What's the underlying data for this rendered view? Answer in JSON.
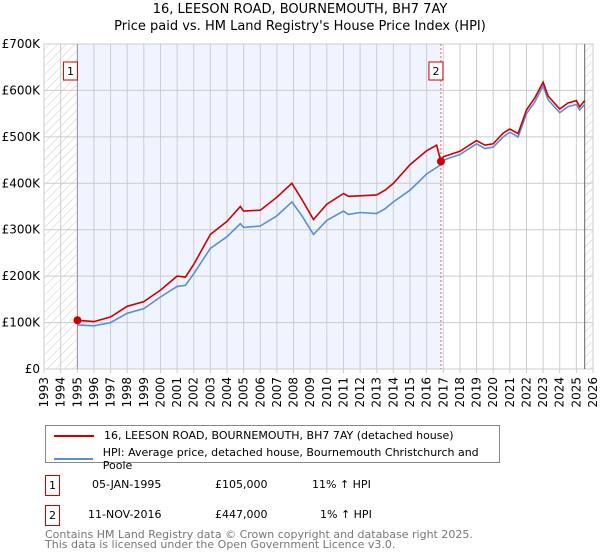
{
  "chart_data": {
    "type": "line",
    "title": "16, LEESON ROAD, BOURNEMOUTH, BH7 7AY",
    "subtitle": "Price paid vs. HM Land Registry's House Price Index (HPI)",
    "xlim": [
      1993,
      2026
    ],
    "ylim": [
      0,
      700000
    ],
    "x_ticks": [
      "1993",
      "1994",
      "1995",
      "1996",
      "1997",
      "1998",
      "1999",
      "2000",
      "2001",
      "2002",
      "2003",
      "2004",
      "2005",
      "2006",
      "2007",
      "2008",
      "2009",
      "2010",
      "2011",
      "2012",
      "2013",
      "2014",
      "2015",
      "2016",
      "2017",
      "2018",
      "2019",
      "2020",
      "2021",
      "2022",
      "2023",
      "2024",
      "2025",
      "2026"
    ],
    "y_ticks": [
      {
        "v": 0,
        "label": "£0"
      },
      {
        "v": 100000,
        "label": "£100K"
      },
      {
        "v": 200000,
        "label": "£200K"
      },
      {
        "v": 300000,
        "label": "£300K"
      },
      {
        "v": 400000,
        "label": "£400K"
      },
      {
        "v": 500000,
        "label": "£500K"
      },
      {
        "v": 600000,
        "label": "£600K"
      },
      {
        "v": 700000,
        "label": "£700K"
      }
    ],
    "grid": true,
    "series": [
      {
        "name": "16, LEESON ROAD, BOURNEMOUTH, BH7 7AY (detached house)",
        "color": "#cc0000",
        "points": [
          [
            1995.01,
            105000
          ],
          [
            1996,
            102000
          ],
          [
            1997,
            112000
          ],
          [
            1998,
            135000
          ],
          [
            1999,
            145000
          ],
          [
            2000,
            170000
          ],
          [
            2001,
            200000
          ],
          [
            2001.5,
            198000
          ],
          [
            2002,
            225000
          ],
          [
            2003,
            290000
          ],
          [
            2004,
            318000
          ],
          [
            2004.8,
            350000
          ],
          [
            2005,
            340000
          ],
          [
            2006,
            342000
          ],
          [
            2007,
            370000
          ],
          [
            2007.9,
            400000
          ],
          [
            2008.5,
            365000
          ],
          [
            2009.2,
            322000
          ],
          [
            2010,
            355000
          ],
          [
            2011,
            378000
          ],
          [
            2011.3,
            372000
          ],
          [
            2012,
            373000
          ],
          [
            2013,
            375000
          ],
          [
            2013.5,
            385000
          ],
          [
            2014,
            400000
          ],
          [
            2015,
            440000
          ],
          [
            2016,
            470000
          ],
          [
            2016.6,
            482000
          ],
          [
            2016.86,
            447000
          ],
          [
            2017,
            457000
          ],
          [
            2018,
            469000
          ],
          [
            2019,
            492000
          ],
          [
            2019.5,
            482000
          ],
          [
            2020,
            485000
          ],
          [
            2020.6,
            508000
          ],
          [
            2021,
            517000
          ],
          [
            2021.5,
            507000
          ],
          [
            2022,
            558000
          ],
          [
            2022.5,
            584000
          ],
          [
            2023,
            618000
          ],
          [
            2023.3,
            588000
          ],
          [
            2024,
            560000
          ],
          [
            2024.5,
            573000
          ],
          [
            2025,
            578000
          ],
          [
            2025.2,
            565000
          ],
          [
            2025.5,
            578000
          ]
        ]
      },
      {
        "name": "HPI: Average price, detached house, Bournemouth Christchurch and Poole",
        "color": "#5b8fd4",
        "points": [
          [
            1995.01,
            95000
          ],
          [
            1996,
            93000
          ],
          [
            1997,
            100000
          ],
          [
            1998,
            120000
          ],
          [
            1999,
            130000
          ],
          [
            2000,
            155000
          ],
          [
            2001,
            178000
          ],
          [
            2001.5,
            180000
          ],
          [
            2002,
            205000
          ],
          [
            2003,
            260000
          ],
          [
            2004,
            285000
          ],
          [
            2004.8,
            313000
          ],
          [
            2005,
            305000
          ],
          [
            2006,
            308000
          ],
          [
            2007,
            330000
          ],
          [
            2007.9,
            360000
          ],
          [
            2008.5,
            330000
          ],
          [
            2009.2,
            290000
          ],
          [
            2010,
            320000
          ],
          [
            2011,
            340000
          ],
          [
            2011.3,
            333000
          ],
          [
            2012,
            337000
          ],
          [
            2013,
            335000
          ],
          [
            2013.5,
            345000
          ],
          [
            2014,
            360000
          ],
          [
            2015,
            385000
          ],
          [
            2016,
            420000
          ],
          [
            2016.86,
            440000
          ],
          [
            2017,
            450000
          ],
          [
            2018,
            462000
          ],
          [
            2019,
            485000
          ],
          [
            2019.5,
            475000
          ],
          [
            2020,
            478000
          ],
          [
            2020.6,
            500000
          ],
          [
            2021,
            510000
          ],
          [
            2021.5,
            500000
          ],
          [
            2022,
            550000
          ],
          [
            2022.5,
            575000
          ],
          [
            2023,
            610000
          ],
          [
            2023.3,
            580000
          ],
          [
            2024,
            552000
          ],
          [
            2024.5,
            565000
          ],
          [
            2025,
            570000
          ],
          [
            2025.2,
            558000
          ],
          [
            2025.5,
            570000
          ]
        ]
      }
    ],
    "sales": [
      {
        "label": "1",
        "x": 1995.01,
        "y": 105000
      },
      {
        "label": "2",
        "x": 2016.86,
        "y": 447000
      }
    ],
    "shaded_range": [
      1995.01,
      2016.86
    ],
    "hatched_ranges": [
      [
        1993,
        1995.01
      ],
      [
        2025.5,
        2026
      ]
    ],
    "legend": "bottom"
  },
  "legend": {
    "property": "16, LEESON ROAD, BOURNEMOUTH, BH7 7AY (detached house)",
    "hpi": "HPI: Average price, detached house, Bournemouth Christchurch and Poole"
  },
  "transactions": [
    {
      "num": "1",
      "date": "05-JAN-1995",
      "price": "£105,000",
      "hpi": "11% ↑ HPI"
    },
    {
      "num": "2",
      "date": "11-NOV-2016",
      "price": "£447,000",
      "hpi": "1% ↑ HPI"
    }
  ],
  "footer": [
    "Contains HM Land Registry data © Crown copyright and database right 2025.",
    "This data is licensed under the Open Government Licence v3.0."
  ]
}
